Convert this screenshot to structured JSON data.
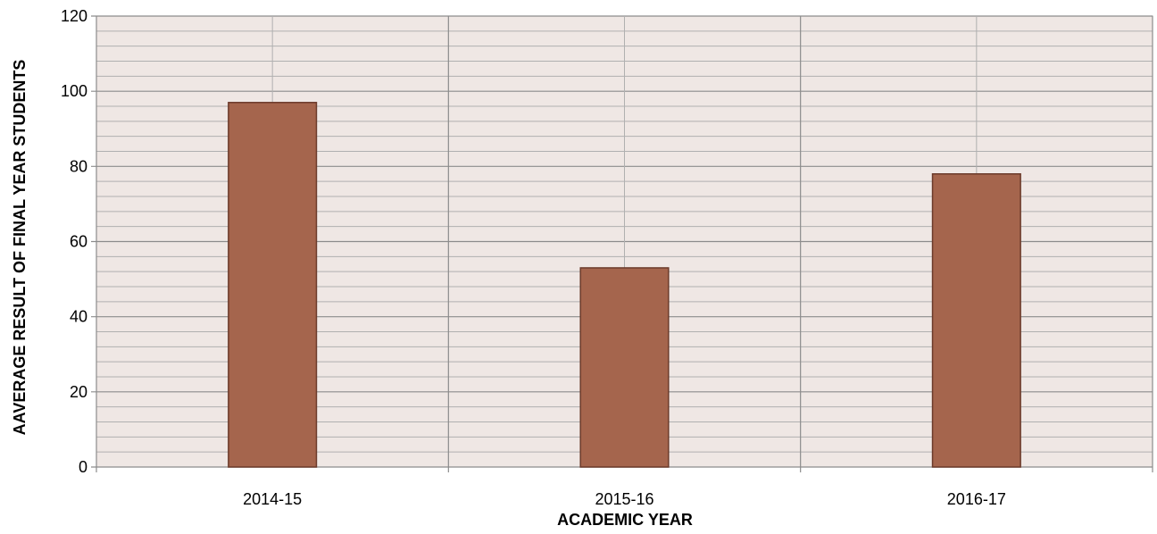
{
  "chart_data": {
    "type": "bar",
    "title": "",
    "xlabel": "ACADEMIC YEAR",
    "ylabel": "AAVERAGE RESULT OF FINAL YEAR STUDENTS",
    "categories": [
      "2014-15",
      "2015-16",
      "2016-17"
    ],
    "values": [
      97,
      53,
      78
    ],
    "ylim": [
      0,
      120
    ],
    "yticks": [
      "0",
      "20",
      "40",
      "60",
      "80",
      "100",
      "120"
    ],
    "grid": true,
    "legend": "none",
    "colors": {
      "bar_fill": "#a5654d",
      "bar_stroke": "#6b3a2a",
      "plot_background": "#efe7e4",
      "major_grid": "#8c8c8c",
      "minor_grid": "#b0b0b0"
    }
  }
}
